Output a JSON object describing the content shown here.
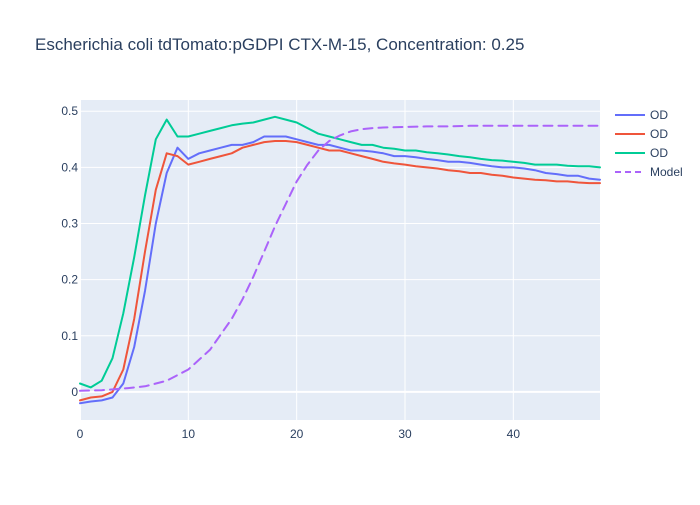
{
  "chart_data": {
    "type": "line",
    "title": "Escherichia coli  tdTomato:pGDPI CTX-M-15, Concentration: 0.25",
    "xlabel": "",
    "ylabel": "",
    "xlim": [
      0,
      48
    ],
    "ylim": [
      -0.05,
      0.52
    ],
    "xticks": [
      0,
      10,
      20,
      30,
      40
    ],
    "yticks": [
      0,
      0.1,
      0.2,
      0.3,
      0.4,
      0.5
    ],
    "xtick_labels": [
      "0",
      "10",
      "20",
      "30",
      "40"
    ],
    "ytick_labels": [
      "0",
      "0.1",
      "0.2",
      "0.3",
      "0.4",
      "0.5"
    ],
    "grid": true,
    "legend_position": "right",
    "colors": {
      "plot_bg": "#e5ecf6",
      "grid": "#ffffff",
      "text": "#2a3f5f"
    },
    "series": [
      {
        "name": "OD",
        "color": "#636efa",
        "dash": "solid",
        "x": [
          0,
          1,
          2,
          3,
          4,
          5,
          6,
          7,
          8,
          9,
          10,
          11,
          12,
          13,
          14,
          15,
          16,
          17,
          18,
          19,
          20,
          21,
          22,
          23,
          24,
          25,
          26,
          27,
          28,
          29,
          30,
          31,
          32,
          33,
          34,
          35,
          36,
          37,
          38,
          39,
          40,
          41,
          42,
          43,
          44,
          45,
          46,
          47,
          48
        ],
        "y": [
          -0.02,
          -0.017,
          -0.015,
          -0.01,
          0.015,
          0.08,
          0.18,
          0.3,
          0.39,
          0.435,
          0.415,
          0.425,
          0.43,
          0.435,
          0.44,
          0.44,
          0.445,
          0.455,
          0.455,
          0.455,
          0.45,
          0.445,
          0.44,
          0.44,
          0.435,
          0.43,
          0.43,
          0.428,
          0.425,
          0.42,
          0.42,
          0.418,
          0.415,
          0.413,
          0.41,
          0.41,
          0.408,
          0.405,
          0.402,
          0.4,
          0.4,
          0.398,
          0.395,
          0.39,
          0.388,
          0.385,
          0.385,
          0.38,
          0.378
        ]
      },
      {
        "name": "OD",
        "color": "#ef553b",
        "dash": "solid",
        "x": [
          0,
          1,
          2,
          3,
          4,
          5,
          6,
          7,
          8,
          9,
          10,
          11,
          12,
          13,
          14,
          15,
          16,
          17,
          18,
          19,
          20,
          21,
          22,
          23,
          24,
          25,
          26,
          27,
          28,
          29,
          30,
          31,
          32,
          33,
          34,
          35,
          36,
          37,
          38,
          39,
          40,
          41,
          42,
          43,
          44,
          45,
          46,
          47,
          48
        ],
        "y": [
          -0.015,
          -0.01,
          -0.008,
          0.0,
          0.04,
          0.13,
          0.25,
          0.36,
          0.425,
          0.42,
          0.405,
          0.41,
          0.415,
          0.42,
          0.425,
          0.435,
          0.44,
          0.445,
          0.447,
          0.447,
          0.445,
          0.44,
          0.435,
          0.43,
          0.43,
          0.425,
          0.42,
          0.415,
          0.41,
          0.407,
          0.405,
          0.402,
          0.4,
          0.398,
          0.395,
          0.393,
          0.39,
          0.39,
          0.387,
          0.385,
          0.382,
          0.38,
          0.378,
          0.377,
          0.375,
          0.375,
          0.373,
          0.372,
          0.372
        ]
      },
      {
        "name": "OD",
        "color": "#00cc96",
        "dash": "solid",
        "x": [
          0,
          1,
          2,
          3,
          4,
          5,
          6,
          7,
          8,
          9,
          10,
          11,
          12,
          13,
          14,
          15,
          16,
          17,
          18,
          19,
          20,
          21,
          22,
          23,
          24,
          25,
          26,
          27,
          28,
          29,
          30,
          31,
          32,
          33,
          34,
          35,
          36,
          37,
          38,
          39,
          40,
          41,
          42,
          43,
          44,
          45,
          46,
          47,
          48
        ],
        "y": [
          0.015,
          0.008,
          0.02,
          0.06,
          0.14,
          0.24,
          0.35,
          0.45,
          0.485,
          0.455,
          0.455,
          0.46,
          0.465,
          0.47,
          0.475,
          0.478,
          0.48,
          0.485,
          0.49,
          0.485,
          0.48,
          0.47,
          0.46,
          0.455,
          0.45,
          0.445,
          0.44,
          0.44,
          0.435,
          0.433,
          0.43,
          0.43,
          0.427,
          0.425,
          0.423,
          0.42,
          0.418,
          0.415,
          0.413,
          0.412,
          0.41,
          0.408,
          0.405,
          0.405,
          0.405,
          0.403,
          0.402,
          0.402,
          0.4
        ]
      },
      {
        "name": "Model",
        "color": "#ab63fa",
        "dash": "dash",
        "x": [
          0,
          2,
          4,
          6,
          8,
          10,
          12,
          14,
          15,
          16,
          17,
          18,
          19,
          20,
          21,
          22,
          23,
          24,
          25,
          26,
          27,
          28,
          30,
          32,
          34,
          36,
          38,
          40,
          42,
          44,
          46,
          48
        ],
        "y": [
          0.002,
          0.003,
          0.006,
          0.01,
          0.02,
          0.04,
          0.075,
          0.13,
          0.165,
          0.205,
          0.25,
          0.295,
          0.335,
          0.375,
          0.405,
          0.43,
          0.447,
          0.457,
          0.464,
          0.468,
          0.47,
          0.471,
          0.472,
          0.473,
          0.473,
          0.474,
          0.474,
          0.474,
          0.474,
          0.474,
          0.474,
          0.474
        ]
      }
    ]
  }
}
